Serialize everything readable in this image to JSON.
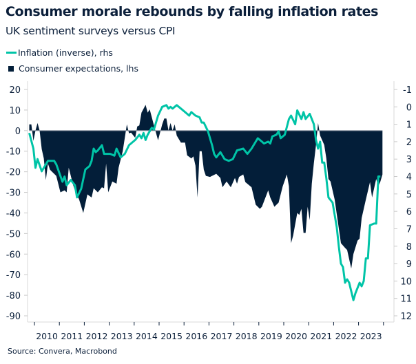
{
  "colors": {
    "inflation": "#00c4a7",
    "consumer": "#031e39",
    "text": "#0b1f3a",
    "axis": "#d9d9d9",
    "zero_line": "#8a93a0"
  },
  "chart_data": {
    "type": "area+line",
    "title": "Consumer morale rebounds by falling inflation rates",
    "subtitle": "UK sentiment surveys versus CPI",
    "source": "Source: Convera, Macrobond",
    "legend_placement": "top-left",
    "grid": false,
    "x_ticks": [
      "2010",
      "2011",
      "2012",
      "2013",
      "2014",
      "2015",
      "2016",
      "2017",
      "2018",
      "2019",
      "2020",
      "2021",
      "2022",
      "2023"
    ],
    "left_axis": {
      "ylim": [
        -90,
        20
      ],
      "ticks": [
        "20",
        "10",
        "0",
        "-10",
        "-20",
        "-30",
        "-40",
        "-50",
        "-60",
        "-70",
        "-80",
        "-90"
      ]
    },
    "right_axis": {
      "ylim": [
        -1,
        12
      ],
      "inverted": true,
      "ticks": [
        "-1",
        "0",
        "1",
        "2",
        "3",
        "4",
        "5",
        "6",
        "7",
        "8",
        "9",
        "10",
        "11",
        "12"
      ]
    },
    "series": [
      {
        "name": "Inflation (inverse), rhs",
        "type": "line",
        "axis": "right",
        "points": [
          [
            "2009-10",
            1.5
          ],
          [
            "2009-12",
            2.4
          ],
          [
            "2010-01",
            3.5
          ],
          [
            "2010-02",
            3.0
          ],
          [
            "2010-04",
            3.7
          ],
          [
            "2010-06",
            3.3
          ],
          [
            "2010-07",
            3.1
          ],
          [
            "2010-10",
            3.1
          ],
          [
            "2010-11",
            3.3
          ],
          [
            "2011-02",
            4.3
          ],
          [
            "2011-03",
            4.0
          ],
          [
            "2011-04",
            4.5
          ],
          [
            "2011-06",
            4.2
          ],
          [
            "2011-08",
            4.5
          ],
          [
            "2011-09",
            5.2
          ],
          [
            "2011-11",
            4.7
          ],
          [
            "2012-01",
            3.6
          ],
          [
            "2012-03",
            3.4
          ],
          [
            "2012-04",
            3.1
          ],
          [
            "2012-05",
            2.4
          ],
          [
            "2012-06",
            2.6
          ],
          [
            "2012-07",
            2.5
          ],
          [
            "2012-09",
            2.2
          ],
          [
            "2012-10",
            2.7
          ],
          [
            "2013-01",
            2.7
          ],
          [
            "2013-03",
            2.8
          ],
          [
            "2013-04",
            2.4
          ],
          [
            "2013-06",
            2.9
          ],
          [
            "2013-08",
            2.7
          ],
          [
            "2013-10",
            2.2
          ],
          [
            "2014-01",
            1.9
          ],
          [
            "2014-03",
            1.6
          ],
          [
            "2014-04",
            1.8
          ],
          [
            "2014-05",
            1.5
          ],
          [
            "2014-06",
            1.9
          ],
          [
            "2014-07",
            1.6
          ],
          [
            "2014-09",
            1.2
          ],
          [
            "2014-10",
            1.3
          ],
          [
            "2014-12",
            0.5
          ],
          [
            "2015-02",
            0.0
          ],
          [
            "2015-04",
            -0.1
          ],
          [
            "2015-05",
            0.1
          ],
          [
            "2015-06",
            0.0
          ],
          [
            "2015-07",
            0.1
          ],
          [
            "2015-09",
            -0.1
          ],
          [
            "2015-11",
            0.1
          ],
          [
            "2016-01",
            0.3
          ],
          [
            "2016-03",
            0.5
          ],
          [
            "2016-04",
            0.3
          ],
          [
            "2016-06",
            0.5
          ],
          [
            "2016-08",
            0.6
          ],
          [
            "2016-09",
            0.9
          ],
          [
            "2016-10",
            0.9
          ],
          [
            "2016-12",
            1.4
          ],
          [
            "2017-02",
            2.2
          ],
          [
            "2017-03",
            2.7
          ],
          [
            "2017-04",
            2.9
          ],
          [
            "2017-06",
            2.6
          ],
          [
            "2017-08",
            3.0
          ],
          [
            "2017-10",
            3.1
          ],
          [
            "2017-12",
            3.0
          ],
          [
            "2018-02",
            2.5
          ],
          [
            "2018-05",
            2.4
          ],
          [
            "2018-07",
            2.7
          ],
          [
            "2018-09",
            2.4
          ],
          [
            "2018-12",
            1.8
          ],
          [
            "2019-02",
            2.0
          ],
          [
            "2019-03",
            2.1
          ],
          [
            "2019-05",
            2.0
          ],
          [
            "2019-06",
            2.1
          ],
          [
            "2019-07",
            1.7
          ],
          [
            "2019-09",
            1.6
          ],
          [
            "2019-10",
            1.4
          ],
          [
            "2019-11",
            1.8
          ],
          [
            "2020-01",
            1.6
          ],
          [
            "2020-03",
            0.7
          ],
          [
            "2020-04",
            0.5
          ],
          [
            "2020-06",
            1.0
          ],
          [
            "2020-07",
            0.2
          ],
          [
            "2020-09",
            0.7
          ],
          [
            "2020-10",
            0.3
          ],
          [
            "2020-11",
            0.7
          ],
          [
            "2021-01",
            0.4
          ],
          [
            "2021-03",
            1.0
          ],
          [
            "2021-04",
            1.9
          ],
          [
            "2021-05",
            2.4
          ],
          [
            "2021-06",
            2.0
          ],
          [
            "2021-07",
            3.2
          ],
          [
            "2021-08",
            3.2
          ],
          [
            "2021-09",
            4.1
          ],
          [
            "2021-10",
            5.2
          ],
          [
            "2021-12",
            5.5
          ],
          [
            "2022-02",
            6.9
          ],
          [
            "2022-03",
            8.0
          ],
          [
            "2022-04",
            9.0
          ],
          [
            "2022-05",
            9.2
          ],
          [
            "2022-06",
            10.1
          ],
          [
            "2022-07",
            9.9
          ],
          [
            "2022-08",
            10.1
          ],
          [
            "2022-10",
            11.1
          ],
          [
            "2022-11",
            10.7
          ],
          [
            "2023-01",
            10.1
          ],
          [
            "2023-02",
            10.3
          ],
          [
            "2023-03",
            10.0
          ],
          [
            "2023-04",
            8.7
          ],
          [
            "2023-05",
            8.7
          ],
          [
            "2023-06",
            6.8
          ],
          [
            "2023-08",
            6.7
          ],
          [
            "2023-09",
            6.7
          ],
          [
            "2023-10",
            4.0
          ],
          [
            "2023-11",
            4.0
          ]
        ]
      },
      {
        "name": "Consumer expectations, lhs",
        "type": "area",
        "axis": "left",
        "points": [
          [
            "2009-10",
            3
          ],
          [
            "2009-11",
            3
          ],
          [
            "2009-12",
            -5
          ],
          [
            "2010-01",
            0
          ],
          [
            "2010-02",
            3.7
          ],
          [
            "2010-03",
            0
          ],
          [
            "2010-04",
            -9
          ],
          [
            "2010-05",
            -13.5
          ],
          [
            "2010-06",
            -24
          ],
          [
            "2010-07",
            -16
          ],
          [
            "2010-08",
            -19
          ],
          [
            "2010-09",
            -20
          ],
          [
            "2010-11",
            -22
          ],
          [
            "2011-01",
            -30
          ],
          [
            "2011-03",
            -29
          ],
          [
            "2011-04",
            -30
          ],
          [
            "2011-05",
            -18
          ],
          [
            "2011-07",
            -26
          ],
          [
            "2011-08",
            -29
          ],
          [
            "2011-10",
            -33.5
          ],
          [
            "2011-12",
            -40
          ],
          [
            "2012-02",
            -31
          ],
          [
            "2012-04",
            -32.5
          ],
          [
            "2012-05",
            -28
          ],
          [
            "2012-07",
            -30
          ],
          [
            "2012-09",
            -27.5
          ],
          [
            "2012-10",
            -28
          ],
          [
            "2012-11",
            -16
          ],
          [
            "2012-12",
            -30
          ],
          [
            "2013-02",
            -24.7
          ],
          [
            "2013-04",
            -25.8
          ],
          [
            "2013-05",
            -18
          ],
          [
            "2013-07",
            -10
          ],
          [
            "2013-09",
            3
          ],
          [
            "2013-10",
            -1.3
          ],
          [
            "2013-11",
            -1
          ],
          [
            "2014-01",
            -3.5
          ],
          [
            "2014-02",
            2
          ],
          [
            "2014-03",
            2.5
          ],
          [
            "2014-04",
            8.7
          ],
          [
            "2014-06",
            12.5
          ],
          [
            "2014-07",
            8.7
          ],
          [
            "2014-08",
            10.3
          ],
          [
            "2014-10",
            2.5
          ],
          [
            "2014-12",
            -4.7
          ],
          [
            "2015-02",
            3
          ],
          [
            "2015-03",
            5.9
          ],
          [
            "2015-04",
            5.9
          ],
          [
            "2015-05",
            0
          ],
          [
            "2015-06",
            3.7
          ],
          [
            "2015-07",
            0
          ],
          [
            "2015-08",
            3
          ],
          [
            "2015-09",
            -2.4
          ],
          [
            "2015-11",
            -5.8
          ],
          [
            "2016-01",
            -5.8
          ],
          [
            "2016-02",
            -12
          ],
          [
            "2016-04",
            -13.5
          ],
          [
            "2016-05",
            -12.5
          ],
          [
            "2016-06",
            -17
          ],
          [
            "2016-07",
            -32.5
          ],
          [
            "2016-08",
            -10
          ],
          [
            "2016-09",
            -10
          ],
          [
            "2016-10",
            -19
          ],
          [
            "2016-11",
            -22
          ],
          [
            "2017-01",
            -22.5
          ],
          [
            "2017-04",
            -21
          ],
          [
            "2017-06",
            -23
          ],
          [
            "2017-07",
            -27.5
          ],
          [
            "2017-09",
            -24.7
          ],
          [
            "2017-11",
            -27.5
          ],
          [
            "2018-01",
            -23
          ],
          [
            "2018-02",
            -25.8
          ],
          [
            "2018-03",
            -22.5
          ],
          [
            "2018-05",
            -21.3
          ],
          [
            "2018-06",
            -25
          ],
          [
            "2018-09",
            -27.5
          ],
          [
            "2018-11",
            -36
          ],
          [
            "2019-01",
            -38
          ],
          [
            "2019-02",
            -37
          ],
          [
            "2019-05",
            -29
          ],
          [
            "2019-06",
            -32.5
          ],
          [
            "2019-07",
            -34.7
          ],
          [
            "2019-08",
            -37
          ],
          [
            "2019-10",
            -35
          ],
          [
            "2019-11",
            -31
          ],
          [
            "2019-12",
            -27
          ],
          [
            "2020-02",
            -21.3
          ],
          [
            "2020-03",
            -27
          ],
          [
            "2020-04",
            -54.7
          ],
          [
            "2020-05",
            -51
          ],
          [
            "2020-07",
            -40
          ],
          [
            "2020-08",
            -41
          ],
          [
            "2020-09",
            -38
          ],
          [
            "2020-10",
            -49.7
          ],
          [
            "2020-11",
            -49.7
          ],
          [
            "2020-12",
            -37
          ],
          [
            "2021-01",
            -43.5
          ],
          [
            "2021-02",
            -25.8
          ],
          [
            "2021-03",
            -15.8
          ],
          [
            "2021-04",
            -7
          ],
          [
            "2021-05",
            3.7
          ],
          [
            "2021-06",
            -2.4
          ],
          [
            "2021-07",
            -4.7
          ],
          [
            "2021-08",
            -7
          ],
          [
            "2021-09",
            -13.5
          ],
          [
            "2021-10",
            -23.5
          ],
          [
            "2021-11",
            -24.7
          ],
          [
            "2022-01",
            -33.5
          ],
          [
            "2022-04",
            -54.7
          ],
          [
            "2022-06",
            -57
          ],
          [
            "2022-07",
            -58
          ],
          [
            "2022-09",
            -67
          ],
          [
            "2022-10",
            -60
          ],
          [
            "2022-12",
            -53.5
          ],
          [
            "2023-01",
            -52.5
          ],
          [
            "2023-02",
            -42.5
          ],
          [
            "2023-04",
            -33.5
          ],
          [
            "2023-06",
            -25
          ],
          [
            "2023-07",
            -32.5
          ],
          [
            "2023-09",
            -23.5
          ],
          [
            "2023-10",
            -27
          ],
          [
            "2023-11",
            -24.7
          ],
          [
            "2023-12",
            -21.3
          ]
        ]
      }
    ]
  }
}
